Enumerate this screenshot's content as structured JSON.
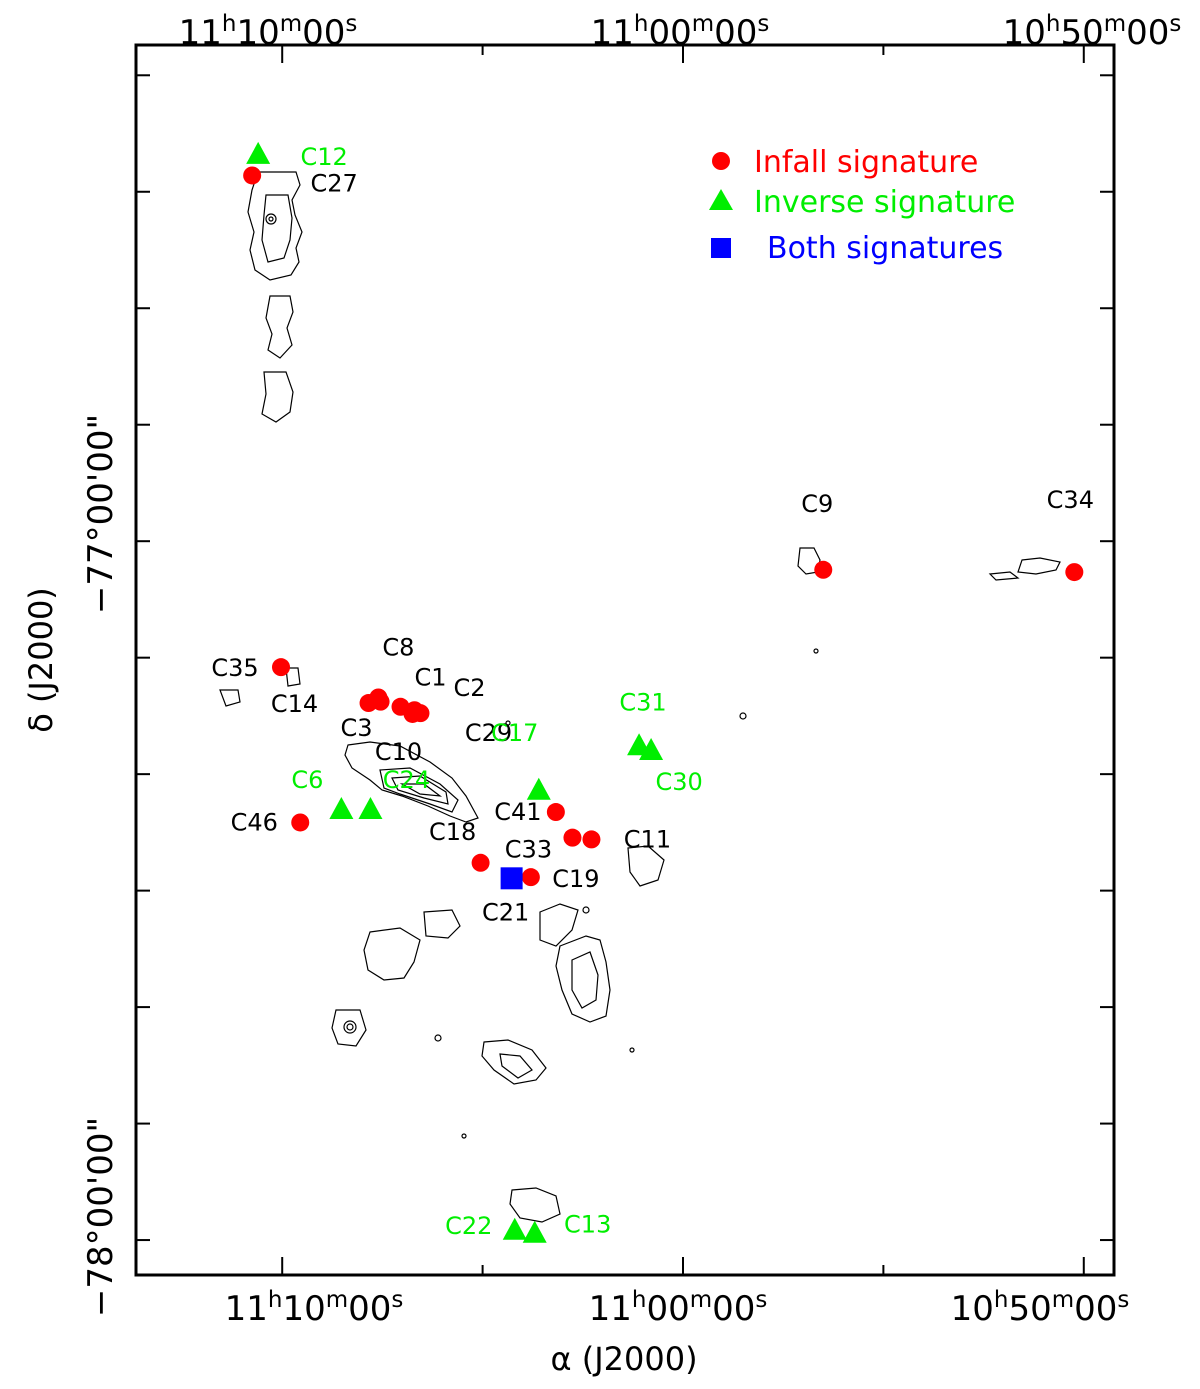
{
  "chart_data": {
    "type": "scatter",
    "title": "",
    "xlabel": "α (J2000)",
    "ylabel": "δ (J2000)",
    "xlim_hours": [
      11.2275,
      10.8208
    ],
    "ylim_deg": [
      -78.05,
      -76.29
    ],
    "x_ticks": [
      {
        "label_h": "11",
        "label_m": "10",
        "label_s": "00",
        "value": 11.1667
      },
      {
        "label_h": "11",
        "label_m": "00",
        "label_s": "00",
        "value": 11.0
      },
      {
        "label_h": "10",
        "label_m": "50",
        "label_s": "00",
        "value": 10.8333
      }
    ],
    "y_ticks": [
      {
        "label": "−77°00'00\"",
        "value": -77.0
      },
      {
        "label": "−78°00'00\"",
        "value": -78.0
      }
    ],
    "colors": {
      "infall": "#ff0000",
      "inverse": "#00ee00",
      "both": "#0000ff",
      "label": "#000000"
    },
    "legend": {
      "placement": "top-right",
      "entries": [
        {
          "label": "Infall signature",
          "marker": "circle",
          "color": "#ff0000"
        },
        {
          "label": "Inverse signature",
          "marker": "triangle",
          "color": "#00ee00"
        },
        {
          "label": "Both signatures",
          "marker": "square",
          "color": "#0000ff"
        }
      ]
    },
    "series": [
      {
        "name": "Infall signature",
        "marker": "circle",
        "color": "#ff0000",
        "points": [
          {
            "name": "C27",
            "ra": 11.1792,
            "dec": -76.4767
          },
          {
            "name": "C9",
            "ra": 10.9417,
            "dec": -77.0409
          },
          {
            "name": "C34",
            "ra": 10.8373,
            "dec": -77.0442
          },
          {
            "name": "C35",
            "ra": 11.1672,
            "dec": -77.1802
          },
          {
            "name": "C8",
            "ra": 11.1267,
            "dec": -77.2236
          },
          {
            "name": "C14",
            "ra": 11.1308,
            "dec": -77.2316
          },
          {
            "name": "C1",
            "ra": 11.1258,
            "dec": -77.2296
          },
          {
            "name": "C3",
            "ra": 11.1175,
            "dec": -77.2369
          },
          {
            "name": "C2",
            "ra": 11.1117,
            "dec": -77.2419
          },
          {
            "name": "C29",
            "ra": 11.1092,
            "dec": -77.2461
          },
          {
            "name": "C10",
            "ra": 11.1125,
            "dec": -77.2472
          },
          {
            "name": "C41",
            "ra": 11.0529,
            "dec": -77.3875
          },
          {
            "name": "C46",
            "ra": 11.1592,
            "dec": -77.4025
          },
          {
            "name": "C33",
            "ra": 11.046,
            "dec": -77.4242
          },
          {
            "name": "C11",
            "ra": 11.0381,
            "dec": -77.4267
          },
          {
            "name": "C18",
            "ra": 11.0842,
            "dec": -77.4602
          },
          {
            "name": "C19",
            "ra": 11.0633,
            "dec": -77.4807
          }
        ]
      },
      {
        "name": "Inverse signature",
        "marker": "triangle",
        "color": "#00ee00",
        "points": [
          {
            "name": "C12",
            "ra": 11.1767,
            "dec": -76.4473
          },
          {
            "name": "C31",
            "ra": 11.0183,
            "dec": -77.2935
          },
          {
            "name": "C30",
            "ra": 11.0133,
            "dec": -77.3002
          },
          {
            "name": "C17",
            "ra": 11.06,
            "dec": -77.3571
          },
          {
            "name": "C6",
            "ra": 11.1421,
            "dec": -77.3847
          },
          {
            "name": "C24",
            "ra": 11.13,
            "dec": -77.3847
          },
          {
            "name": "C22",
            "ra": 11.07,
            "dec": -77.9867
          },
          {
            "name": "C13",
            "ra": 11.0617,
            "dec": -77.9909
          }
        ]
      },
      {
        "name": "Both signatures",
        "marker": "square",
        "color": "#0000ff",
        "points": [
          {
            "name": "C21",
            "ra": 11.0713,
            "dec": -77.4824
          }
        ]
      }
    ]
  }
}
